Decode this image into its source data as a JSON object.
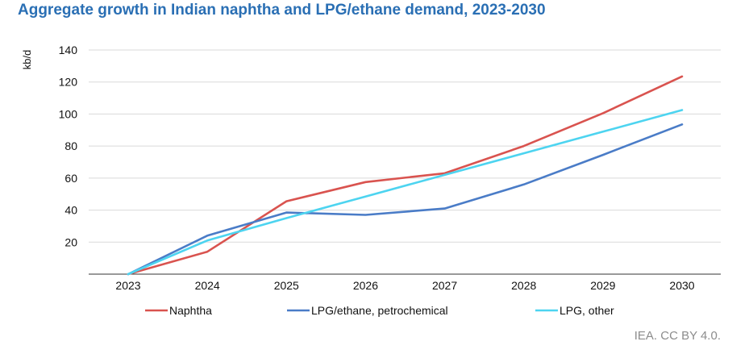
{
  "title": "Aggregate growth in Indian naphtha and LPG/ethane demand, 2023-2030",
  "credit": "IEA. CC BY 4.0.",
  "chart_data": {
    "type": "line",
    "title": "Aggregate growth in Indian naphtha and LPG/ethane demand, 2023-2030",
    "xlabel": "",
    "ylabel": "kb/d",
    "categories": [
      "2023",
      "2024",
      "2025",
      "2026",
      "2027",
      "2028",
      "2029",
      "2030"
    ],
    "yticks": [
      20,
      40,
      60,
      80,
      100,
      120,
      140
    ],
    "ylim": [
      0,
      140
    ],
    "grid": true,
    "legend_position": "bottom",
    "series": [
      {
        "name": "Naphtha",
        "color": "#d9534f",
        "values": [
          0,
          14,
          45.5,
          57.5,
          63,
          80,
          100.5,
          123.5
        ]
      },
      {
        "name": "LPG/ethane, petrochemical",
        "color": "#4a7cc7",
        "values": [
          0,
          24,
          38.5,
          37,
          41,
          56,
          74.5,
          93.5
        ]
      },
      {
        "name": "LPG, other",
        "color": "#4dd4f0",
        "values": [
          0,
          21,
          35,
          48.5,
          62,
          75.5,
          89,
          102.5
        ]
      }
    ]
  }
}
